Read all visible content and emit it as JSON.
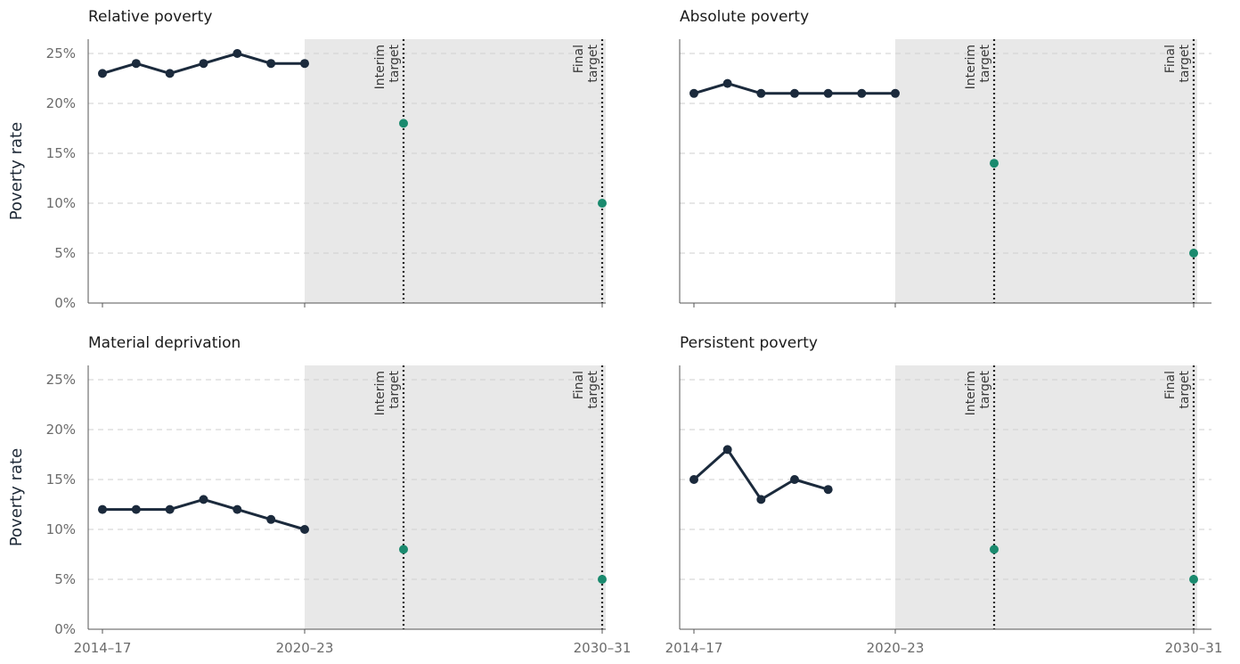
{
  "colors": {
    "series": "#1b2a3c",
    "target": "#1a8a6e",
    "projection_shade": "#e8e8e8",
    "grid": "#cfcfcf",
    "axis": "#555555"
  },
  "chart_data": [
    {
      "type": "line",
      "title": "Relative poverty",
      "ylabel": "Poverty rate",
      "ylim": [
        0,
        25
      ],
      "yticks": [
        "0%",
        "5%",
        "10%",
        "15%",
        "20%",
        "25%"
      ],
      "xticks": [
        "2014–17",
        "2020–23",
        "2030–31"
      ],
      "series": [
        {
          "values": [
            23,
            24,
            23,
            24,
            25,
            24,
            24
          ]
        }
      ],
      "targets": [
        {
          "label": [
            "Interim",
            "target"
          ],
          "value": 18
        },
        {
          "label": [
            "Final",
            "target"
          ],
          "value": 10
        }
      ],
      "grid": true,
      "shaded_projection": true
    },
    {
      "type": "line",
      "title": "Absolute poverty",
      "ylabel": "",
      "ylim": [
        0,
        25
      ],
      "yticks": [
        "",
        "",
        "",
        "",
        "",
        ""
      ],
      "xticks": [
        "2014–17",
        "2020–23",
        "2030–31"
      ],
      "series": [
        {
          "values": [
            21,
            22,
            21,
            21,
            21,
            21,
            21
          ]
        }
      ],
      "targets": [
        {
          "label": [
            "Interim",
            "target"
          ],
          "value": 14
        },
        {
          "label": [
            "Final",
            "target"
          ],
          "value": 5
        }
      ],
      "grid": true,
      "shaded_projection": true
    },
    {
      "type": "line",
      "title": "Material deprivation",
      "ylabel": "Poverty rate",
      "ylim": [
        0,
        25
      ],
      "yticks": [
        "0%",
        "5%",
        "10%",
        "15%",
        "20%",
        "25%"
      ],
      "xticks": [
        "2014–17",
        "2020–23",
        "2030–31"
      ],
      "series": [
        {
          "values": [
            12,
            12,
            12,
            13,
            12,
            11,
            10
          ]
        }
      ],
      "targets": [
        {
          "label": [
            "Interim",
            "target"
          ],
          "value": 8
        },
        {
          "label": [
            "Final",
            "target"
          ],
          "value": 5
        }
      ],
      "grid": true,
      "shaded_projection": true
    },
    {
      "type": "line",
      "title": "Persistent poverty",
      "ylabel": "",
      "ylim": [
        0,
        25
      ],
      "yticks": [
        "",
        "",
        "",
        "",
        "",
        ""
      ],
      "xticks": [
        "2014–17",
        "2020–23",
        "2030–31"
      ],
      "series": [
        {
          "values": [
            15,
            18,
            13,
            15,
            14
          ]
        }
      ],
      "targets": [
        {
          "label": [
            "Interim",
            "target"
          ],
          "value": 8
        },
        {
          "label": [
            "Final",
            "target"
          ],
          "value": 5
        }
      ],
      "grid": true,
      "shaded_projection": true
    }
  ]
}
